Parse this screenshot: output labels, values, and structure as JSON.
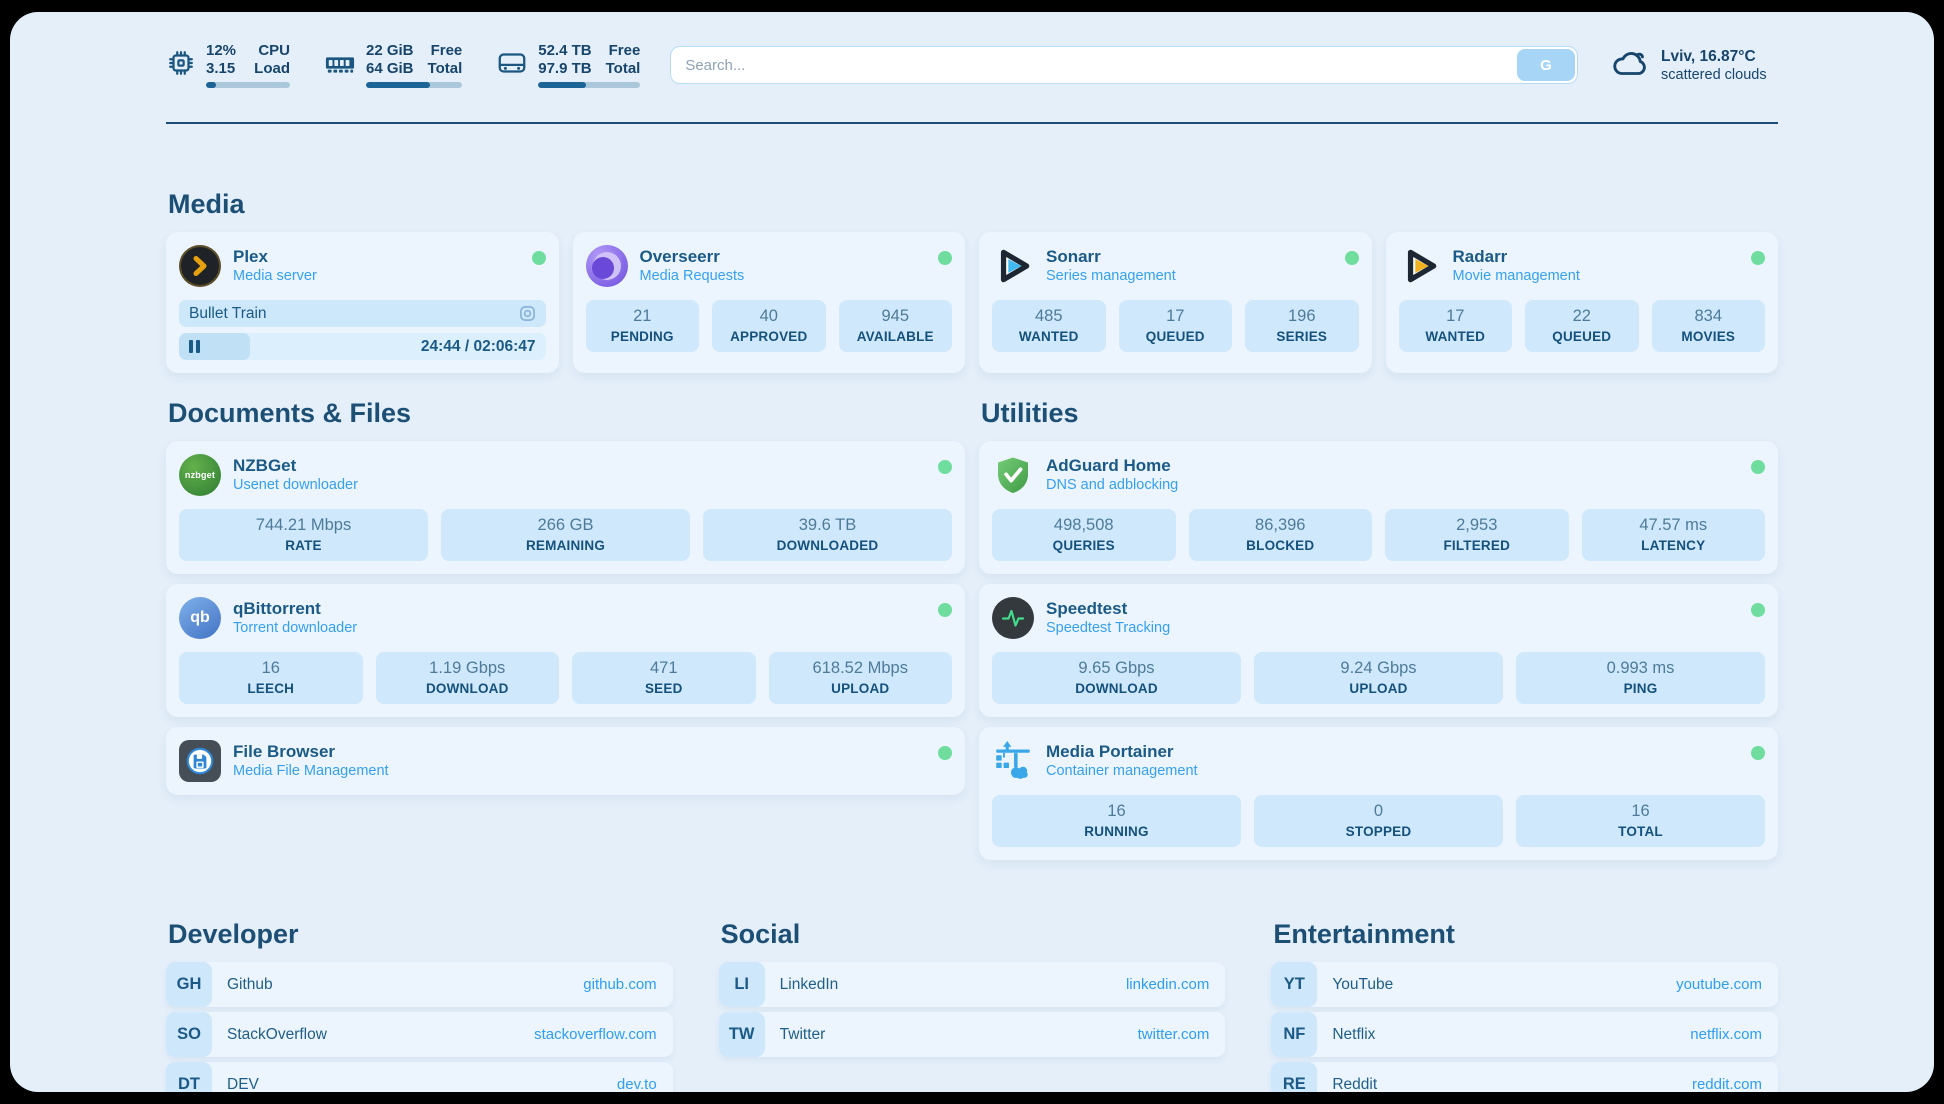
{
  "topbar": {
    "cpu": {
      "usage": "12%",
      "load": "3.15",
      "label_top": "CPU",
      "label_bottom": "Load",
      "bar_percent": 12
    },
    "ram": {
      "free": "22 GiB",
      "total": "64 GiB",
      "label_top": "Free",
      "label_bottom": "Total",
      "bar_percent": 66
    },
    "disk": {
      "free": "52.4 TB",
      "total": "97.9 TB",
      "label_top": "Free",
      "label_bottom": "Total",
      "bar_percent": 47
    },
    "search": {
      "placeholder": "Search...",
      "button_label": "G"
    },
    "weather": {
      "location_temp": "Lviv, 16.87°C",
      "condition": "scattered clouds"
    }
  },
  "sections": {
    "media": {
      "title": "Media",
      "apps": [
        {
          "name": "Plex",
          "desc": "Media server",
          "status": "online",
          "now_playing": {
            "title": "Bullet Train",
            "time": "24:44 / 02:06:47",
            "progress_percent": 19.5
          }
        },
        {
          "name": "Overseerr",
          "desc": "Media Requests",
          "status": "online",
          "stats": [
            {
              "value": "21",
              "label": "PENDING"
            },
            {
              "value": "40",
              "label": "APPROVED"
            },
            {
              "value": "945",
              "label": "AVAILABLE"
            }
          ]
        },
        {
          "name": "Sonarr",
          "desc": "Series management",
          "status": "online",
          "stats": [
            {
              "value": "485",
              "label": "WANTED"
            },
            {
              "value": "17",
              "label": "QUEUED"
            },
            {
              "value": "196",
              "label": "SERIES"
            }
          ]
        },
        {
          "name": "Radarr",
          "desc": "Movie management",
          "status": "online",
          "stats": [
            {
              "value": "17",
              "label": "WANTED"
            },
            {
              "value": "22",
              "label": "QUEUED"
            },
            {
              "value": "834",
              "label": "MOVIES"
            }
          ]
        }
      ]
    },
    "documents": {
      "title": "Documents & Files",
      "apps": [
        {
          "name": "NZBGet",
          "desc": "Usenet downloader",
          "status": "online",
          "stats": [
            {
              "value": "744.21 Mbps",
              "label": "RATE"
            },
            {
              "value": "266 GB",
              "label": "REMAINING"
            },
            {
              "value": "39.6 TB",
              "label": "DOWNLOADED"
            }
          ]
        },
        {
          "name": "qBittorrent",
          "desc": "Torrent downloader",
          "status": "online",
          "stats": [
            {
              "value": "16",
              "label": "LEECH"
            },
            {
              "value": "1.19 Gbps",
              "label": "DOWNLOAD"
            },
            {
              "value": "471",
              "label": "SEED"
            },
            {
              "value": "618.52 Mbps",
              "label": "UPLOAD"
            }
          ]
        },
        {
          "name": "File Browser",
          "desc": "Media File Management",
          "status": "online",
          "stats": []
        }
      ]
    },
    "utilities": {
      "title": "Utilities",
      "apps": [
        {
          "name": "AdGuard Home",
          "desc": "DNS and adblocking",
          "status": "online",
          "stats": [
            {
              "value": "498,508",
              "label": "QUERIES"
            },
            {
              "value": "86,396",
              "label": "BLOCKED"
            },
            {
              "value": "2,953",
              "label": "FILTERED"
            },
            {
              "value": "47.57 ms",
              "label": "LATENCY"
            }
          ]
        },
        {
          "name": "Speedtest",
          "desc": "Speedtest Tracking",
          "status": "online",
          "stats": [
            {
              "value": "9.65 Gbps",
              "label": "DOWNLOAD"
            },
            {
              "value": "9.24 Gbps",
              "label": "UPLOAD"
            },
            {
              "value": "0.993 ms",
              "label": "PING"
            }
          ]
        },
        {
          "name": "Media Portainer",
          "desc": "Container management",
          "status": "online",
          "stats": [
            {
              "value": "16",
              "label": "RUNNING"
            },
            {
              "value": "0",
              "label": "STOPPED"
            },
            {
              "value": "16",
              "label": "TOTAL"
            }
          ]
        }
      ]
    }
  },
  "bookmarks": {
    "groups": [
      {
        "title": "Developer",
        "items": [
          {
            "abbr": "GH",
            "name": "Github",
            "url": "github.com"
          },
          {
            "abbr": "SO",
            "name": "StackOverflow",
            "url": "stackoverflow.com"
          },
          {
            "abbr": "DT",
            "name": "DEV",
            "url": "dev.to"
          }
        ]
      },
      {
        "title": "Social",
        "items": [
          {
            "abbr": "LI",
            "name": "LinkedIn",
            "url": "linkedin.com"
          },
          {
            "abbr": "TW",
            "name": "Twitter",
            "url": "twitter.com"
          }
        ]
      },
      {
        "title": "Entertainment",
        "items": [
          {
            "abbr": "YT",
            "name": "YouTube",
            "url": "youtube.com"
          },
          {
            "abbr": "NF",
            "name": "Netflix",
            "url": "netflix.com"
          },
          {
            "abbr": "RE",
            "name": "Reddit",
            "url": "reddit.com"
          }
        ]
      }
    ]
  },
  "colors": {
    "page_bg": "#e4effa",
    "card_bg": "#ecf5fd",
    "tile_bg": "#cfe8fb",
    "accent_blue": "#36a0f0",
    "title_navy": "#1b5a86",
    "status_online_green": "#6fdd9e",
    "plex_amber": "#e5a00d",
    "radarr_yellow": "#f2b21f",
    "sonarr_blue": "#41b9f0"
  },
  "icons": {
    "cpu": "cpu-chip-icon",
    "ram": "ram-stick-icon",
    "disk": "hard-drive-icon",
    "search_button": "google-g",
    "weather": "cloud-icon",
    "plex": "plex-chevron-icon",
    "overseerr": "overseerr-eye-icon",
    "sonarr": "play-triangle-blue-icon",
    "radarr": "play-triangle-yellow-icon",
    "nzbget": "nzbget-badge-icon",
    "qbittorrent": "qb-badge-icon",
    "filebrowser": "floppy-disk-icon",
    "adguard": "shield-check-icon",
    "speedtest": "pulse-line-icon",
    "portainer": "container-crane-icon",
    "now_playing": "video-icon",
    "pause": "pause-icon",
    "status": "status-dot"
  }
}
